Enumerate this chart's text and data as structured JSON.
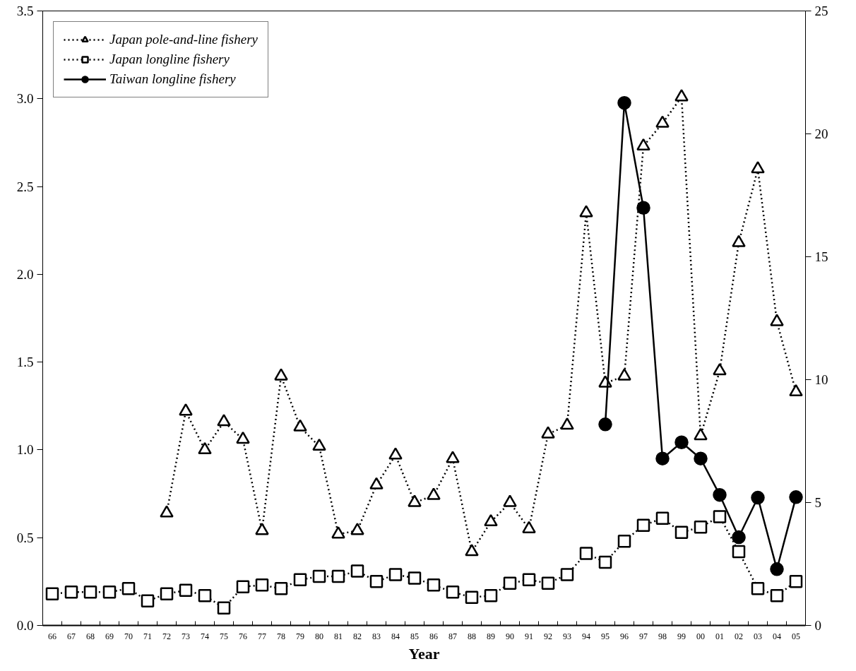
{
  "chart_data": {
    "type": "line",
    "xlabel": "Year",
    "categories": [
      "66",
      "67",
      "68",
      "69",
      "70",
      "71",
      "72",
      "73",
      "74",
      "75",
      "76",
      "77",
      "78",
      "79",
      "80",
      "81",
      "82",
      "83",
      "84",
      "85",
      "86",
      "87",
      "88",
      "89",
      "90",
      "91",
      "92",
      "93",
      "94",
      "95",
      "96",
      "97",
      "98",
      "99",
      "00",
      "01",
      "02",
      "03",
      "04",
      "05"
    ],
    "series": [
      {
        "name": "Japan pole-and-line fishery",
        "color": "#000000",
        "marker": "triangle",
        "line_style": "dotted",
        "values": [
          null,
          null,
          null,
          null,
          null,
          null,
          0.64,
          1.22,
          1.0,
          1.16,
          1.06,
          0.54,
          1.42,
          1.13,
          1.02,
          0.52,
          0.54,
          0.8,
          0.97,
          0.7,
          0.74,
          0.95,
          0.42,
          0.59,
          0.7,
          0.55,
          1.09,
          1.14,
          2.35,
          1.38,
          1.42,
          2.73,
          2.86,
          3.01,
          1.08,
          1.45,
          2.18,
          2.6,
          1.73,
          1.33
        ]
      },
      {
        "name": "Japan longline fishery",
        "color": "#000000",
        "marker": "square",
        "line_style": "dotted",
        "values": [
          0.18,
          0.19,
          0.19,
          0.19,
          0.21,
          0.14,
          0.18,
          0.2,
          0.17,
          0.1,
          0.22,
          0.23,
          0.21,
          0.26,
          0.28,
          0.28,
          0.31,
          0.25,
          0.29,
          0.27,
          0.23,
          0.19,
          0.16,
          0.17,
          0.24,
          0.26,
          0.24,
          0.29,
          0.41,
          0.36,
          0.48,
          0.57,
          0.61,
          0.53,
          0.56,
          0.62,
          0.42,
          0.21,
          0.17,
          0.25
        ]
      },
      {
        "name": "Taiwan longline fishery",
        "color": "#000000",
        "marker": "circle",
        "line_style": "solid",
        "axis": "y2",
        "values": [
          null,
          null,
          null,
          null,
          null,
          null,
          null,
          null,
          null,
          null,
          null,
          null,
          null,
          null,
          null,
          null,
          null,
          null,
          null,
          null,
          null,
          null,
          null,
          null,
          null,
          null,
          null,
          null,
          null,
          8.18,
          21.26,
          16.99,
          6.79,
          7.45,
          6.79,
          5.31,
          3.59,
          5.2,
          2.29,
          5.22
        ]
      }
    ],
    "ylim": [
      0,
      3.5
    ],
    "yticks": [
      {
        "value": 0,
        "label": "0.0"
      },
      0.5,
      {
        "value": 1,
        "label": "1.0"
      },
      1.5,
      {
        "value": 2,
        "label": "2.0"
      },
      2.5,
      {
        "value": 3,
        "label": "3.0"
      },
      3.5
    ],
    "y2lim": [
      0,
      25
    ],
    "y2ticks": [
      0,
      5,
      10,
      15,
      20,
      25
    ],
    "grid": false,
    "legend": "top left"
  }
}
